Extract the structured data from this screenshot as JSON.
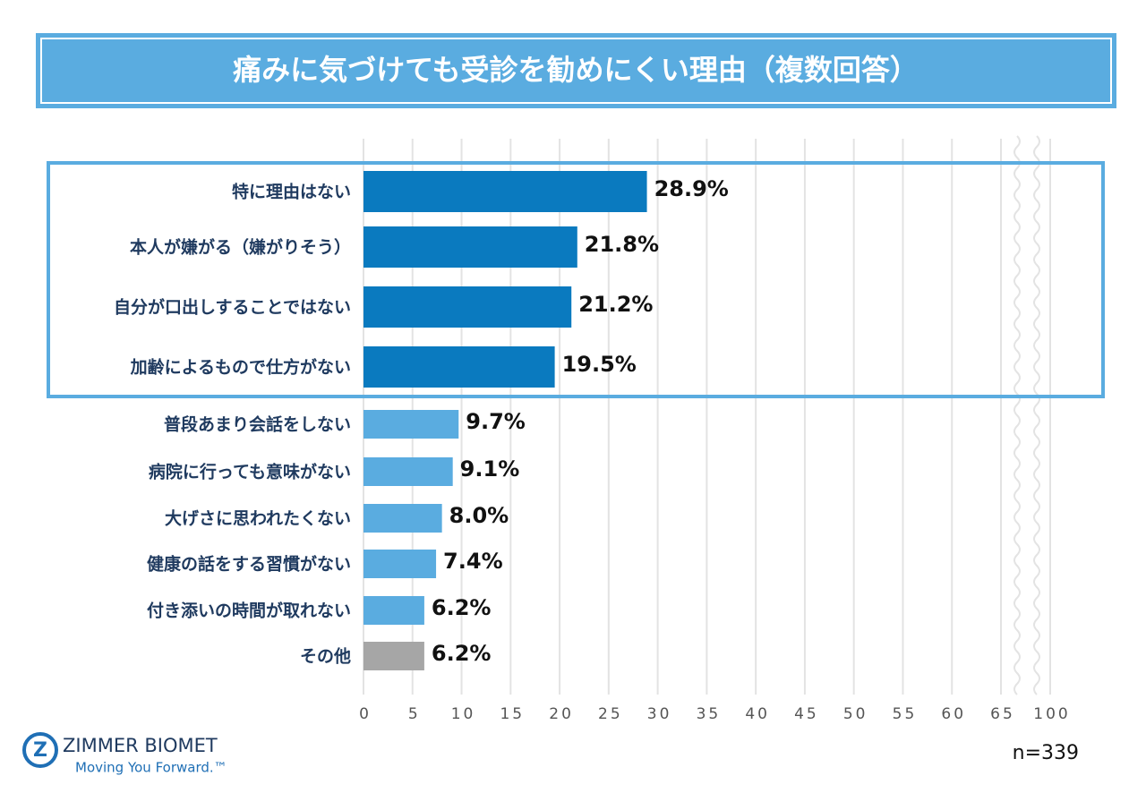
{
  "chart_data": {
    "type": "bar",
    "orientation": "horizontal",
    "title": "痛みに気づけても受診を勧めにくい理由（複数回答）",
    "categories": [
      "特に理由はない",
      "本人が嫌がる（嫌がりそう）",
      "自分が口出しすることではない",
      "加齢によるもので仕方がない",
      "普段あまり会話をしない",
      "病院に行っても意味がない",
      "大げさに思われたくない",
      "健康の話をする習慣がない",
      "付き添いの時間が取れない",
      "その他"
    ],
    "values": [
      28.9,
      21.8,
      21.2,
      19.5,
      9.7,
      9.1,
      8.0,
      7.4,
      6.2,
      6.2
    ],
    "value_labels": [
      "28.9%",
      "21.8%",
      "21.2%",
      "19.5%",
      "9.7%",
      "9.1%",
      "8.0%",
      "7.4%",
      "6.2%",
      "6.2%"
    ],
    "colors": [
      "#0a7abf",
      "#0a7abf",
      "#0a7abf",
      "#0a7abf",
      "#5aace0",
      "#5aace0",
      "#5aace0",
      "#5aace0",
      "#5aace0",
      "#a6a6a6"
    ],
    "xlim": [
      0,
      100
    ],
    "xticks": [
      0,
      5,
      10,
      15,
      20,
      25,
      30,
      35,
      40,
      45,
      50,
      55,
      60,
      65,
      100
    ],
    "axis_break": [
      65,
      100
    ],
    "grid": true,
    "note": "n=339"
  },
  "logo": {
    "name": "ZIMMER BIOMET",
    "tagline": "Moving You Forward.™"
  }
}
